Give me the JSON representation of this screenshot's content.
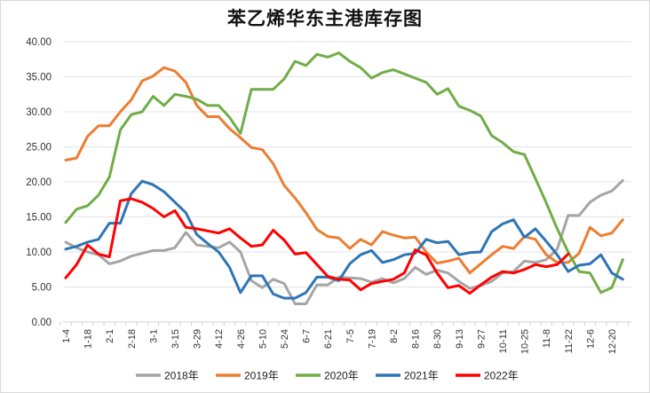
{
  "chart_data": {
    "type": "line",
    "title": "苯乙烯华东主港库存图",
    "xlabel": "",
    "ylabel": "",
    "ylim": [
      0,
      40
    ],
    "y_ticks": [
      "0.00",
      "5.00",
      "10.00",
      "15.00",
      "20.00",
      "25.00",
      "30.00",
      "35.00",
      "40.00"
    ],
    "x_tick_labels": [
      "1-4",
      "1-18",
      "2-1",
      "2-18",
      "3-1",
      "3-15",
      "3-29",
      "4-12",
      "4-26",
      "5-10",
      "5-24",
      "6-7",
      "6-21",
      "7-5",
      "7-19",
      "8-2",
      "8-16",
      "8-30",
      "9-13",
      "9-27",
      "10-11",
      "10-25",
      "11-8",
      "11-22",
      "12-6",
      "12-20"
    ],
    "grid": "horizontal",
    "legend": "bottom",
    "series": [
      {
        "name": "2018年",
        "color": "#a5a5a5",
        "values": [
          11.4,
          10.6,
          10.0,
          9.6,
          8.3,
          8.7,
          9.4,
          9.8,
          10.2,
          10.2,
          10.6,
          12.8,
          11.0,
          10.8,
          10.6,
          11.4,
          10.0,
          5.9,
          4.9,
          6.1,
          5.5,
          2.6,
          2.6,
          5.3,
          5.3,
          6.4,
          6.3,
          6.2,
          5.7,
          6.2,
          5.6,
          6.2,
          7.8,
          6.8,
          7.4,
          7.0,
          5.8,
          4.8,
          5.2,
          5.8,
          7.0,
          7.2,
          8.7,
          8.5,
          8.9,
          10.4,
          15.2,
          15.2,
          17.1,
          18.1,
          18.7,
          20.2
        ]
      },
      {
        "name": "2019年",
        "color": "#ed7d31",
        "values": [
          23.1,
          23.4,
          26.5,
          28.0,
          28.0,
          30.0,
          31.7,
          34.4,
          35.1,
          36.3,
          35.8,
          34.2,
          30.9,
          29.3,
          29.3,
          27.6,
          26.3,
          24.9,
          24.6,
          22.6,
          19.5,
          17.7,
          15.6,
          13.2,
          12.2,
          12.0,
          10.5,
          11.8,
          11.0,
          12.9,
          12.4,
          12.0,
          12.1,
          10.0,
          8.4,
          8.7,
          9.1,
          7.0,
          8.3,
          9.6,
          10.8,
          10.5,
          12.2,
          11.8,
          9.6,
          8.5,
          8.5,
          9.8,
          13.5,
          12.3,
          12.7,
          14.6
        ]
      },
      {
        "name": "2020年",
        "color": "#70ad47",
        "values": [
          14.2,
          16.1,
          16.6,
          18.1,
          20.7,
          27.4,
          29.6,
          30.0,
          32.2,
          30.9,
          32.5,
          32.2,
          31.8,
          30.9,
          30.9,
          29.2,
          26.9,
          33.2,
          33.2,
          33.2,
          34.7,
          37.2,
          36.6,
          38.2,
          37.8,
          38.4,
          37.2,
          36.3,
          34.8,
          35.6,
          36.0,
          35.4,
          34.8,
          34.2,
          32.5,
          33.3,
          30.8,
          30.2,
          29.4,
          26.6,
          25.6,
          24.3,
          23.9,
          20.5,
          17.0,
          13.3,
          10.0,
          7.2,
          7.0,
          4.2,
          4.9,
          8.9
        ]
      },
      {
        "name": "2021年",
        "color": "#2e75b6",
        "values": [
          10.4,
          10.8,
          11.4,
          11.8,
          14.1,
          14.1,
          18.3,
          20.1,
          19.6,
          18.6,
          17.1,
          15.6,
          12.5,
          11.2,
          10.0,
          7.8,
          4.2,
          6.6,
          6.6,
          4.0,
          3.4,
          3.4,
          4.2,
          6.4,
          6.4,
          5.9,
          8.3,
          9.6,
          10.2,
          8.5,
          8.9,
          9.6,
          9.8,
          11.8,
          11.3,
          11.5,
          9.6,
          9.9,
          10.0,
          12.9,
          14.0,
          14.6,
          12.1,
          13.3,
          11.5,
          9.6,
          7.2,
          8.1,
          8.3,
          9.6,
          7.0,
          6.1
        ]
      },
      {
        "name": "2022年",
        "color": "#ff0000",
        "values": [
          6.3,
          8.2,
          11.0,
          9.7,
          9.3,
          17.3,
          17.6,
          17.1,
          16.2,
          15.0,
          15.9,
          13.5,
          13.3,
          13.0,
          12.7,
          13.3,
          12.0,
          10.8,
          11.0,
          13.1,
          11.7,
          9.7,
          9.9,
          8.2,
          6.5,
          6.1,
          6.0,
          4.6,
          5.5,
          5.8,
          6.1,
          7.0,
          10.3,
          9.6,
          7.0,
          4.9,
          5.2,
          4.1,
          5.3,
          6.4,
          7.2,
          7.0,
          7.5,
          8.2,
          7.9,
          8.2,
          9.7
        ]
      }
    ]
  }
}
